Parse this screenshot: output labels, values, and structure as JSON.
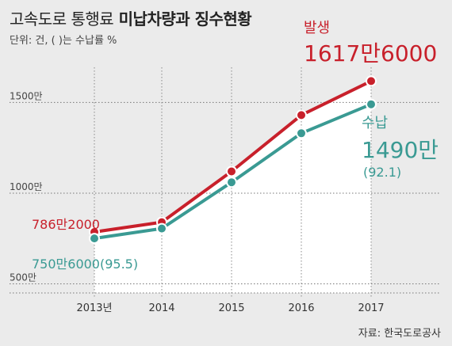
{
  "header": {
    "title_main": "고속도로 통행료",
    "title_bold": "미납차량과 징수현황",
    "unit_note": "단위: 건, ( )는 수납률 %"
  },
  "source": "자료: 한국도로공사",
  "colors": {
    "occurred": "#c8202b",
    "collected": "#3a9a93",
    "background": "#ebebeb",
    "plot_area": "#ffffff"
  },
  "chart_data": {
    "type": "line",
    "categories": [
      "2013년",
      "2014",
      "2015",
      "2016",
      "2017"
    ],
    "x_ticks": [
      "2013년",
      "2014",
      "2015",
      "2016",
      "2017"
    ],
    "y_ticks": [
      "1500만",
      "1000만",
      "500만"
    ],
    "ylim": [
      4500000,
      16500000
    ],
    "grid": true,
    "series": [
      {
        "name": "발생",
        "values": [
          7862000,
          8400000,
          11200000,
          14300000,
          16176000
        ],
        "annotations": {
          "start": "786만2000",
          "end": "1617만6000"
        }
      },
      {
        "name": "수납",
        "values": [
          7506000,
          8050000,
          10600000,
          13300000,
          14900000
        ],
        "annotations": {
          "start": "750만6000(95.5)",
          "end": "1490만",
          "end_rate": "(92.1)"
        }
      }
    ]
  }
}
